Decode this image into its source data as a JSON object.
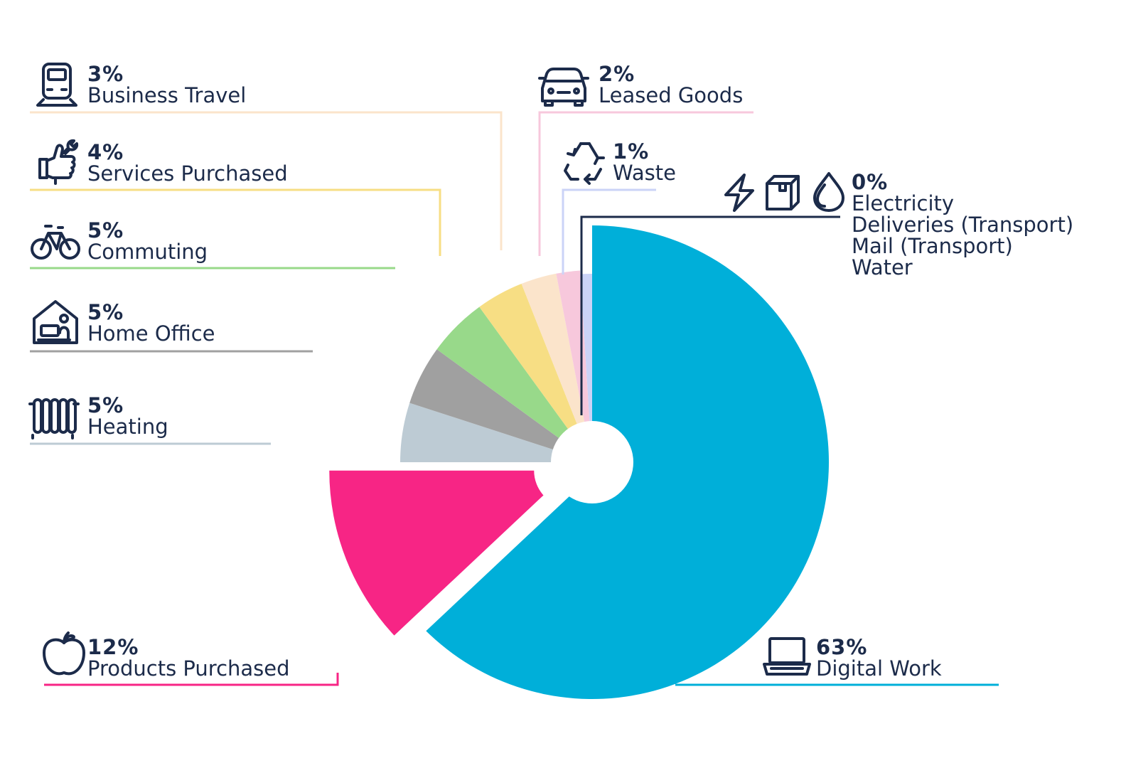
{
  "chart_data": {
    "type": "pie",
    "slices": [
      {
        "label": "Digital Work",
        "value": 63,
        "display": "63%",
        "color": "#00afd9",
        "icon": "laptop-icon"
      },
      {
        "label": "Products Purchased",
        "value": 12,
        "display": "12%",
        "color": "#f72585",
        "icon": "apple-icon"
      },
      {
        "label": "Heating",
        "value": 5,
        "display": "5%",
        "color": "#bdcbd4",
        "icon": "radiator-icon"
      },
      {
        "label": "Home Office",
        "value": 5,
        "display": "5%",
        "color": "#a0a0a0",
        "icon": "home-office-icon"
      },
      {
        "label": "Commuting",
        "value": 5,
        "display": "5%",
        "color": "#98d98a",
        "icon": "bicycle-icon"
      },
      {
        "label": "Services Purchased",
        "value": 4,
        "display": "4%",
        "color": "#f7de84",
        "icon": "wrench-hand-icon"
      },
      {
        "label": "Business Travel",
        "value": 3,
        "display": "3%",
        "color": "#fbe4cb",
        "icon": "train-icon"
      },
      {
        "label": "Leased Goods",
        "value": 2,
        "display": "2%",
        "color": "#f7c8dc",
        "icon": "car-icon"
      },
      {
        "label": "Waste",
        "value": 1,
        "display": "1%",
        "color": "#cbd3f7",
        "icon": "recycle-icon"
      }
    ],
    "zero_group": {
      "display": "0%",
      "labels": [
        "Electricity",
        "Deliveries (Transport)",
        "Mail (Transport)",
        "Water"
      ],
      "icons": [
        "lightning-icon",
        "package-icon",
        "water-drop-icon"
      ],
      "color": "#1c2b4a"
    }
  }
}
